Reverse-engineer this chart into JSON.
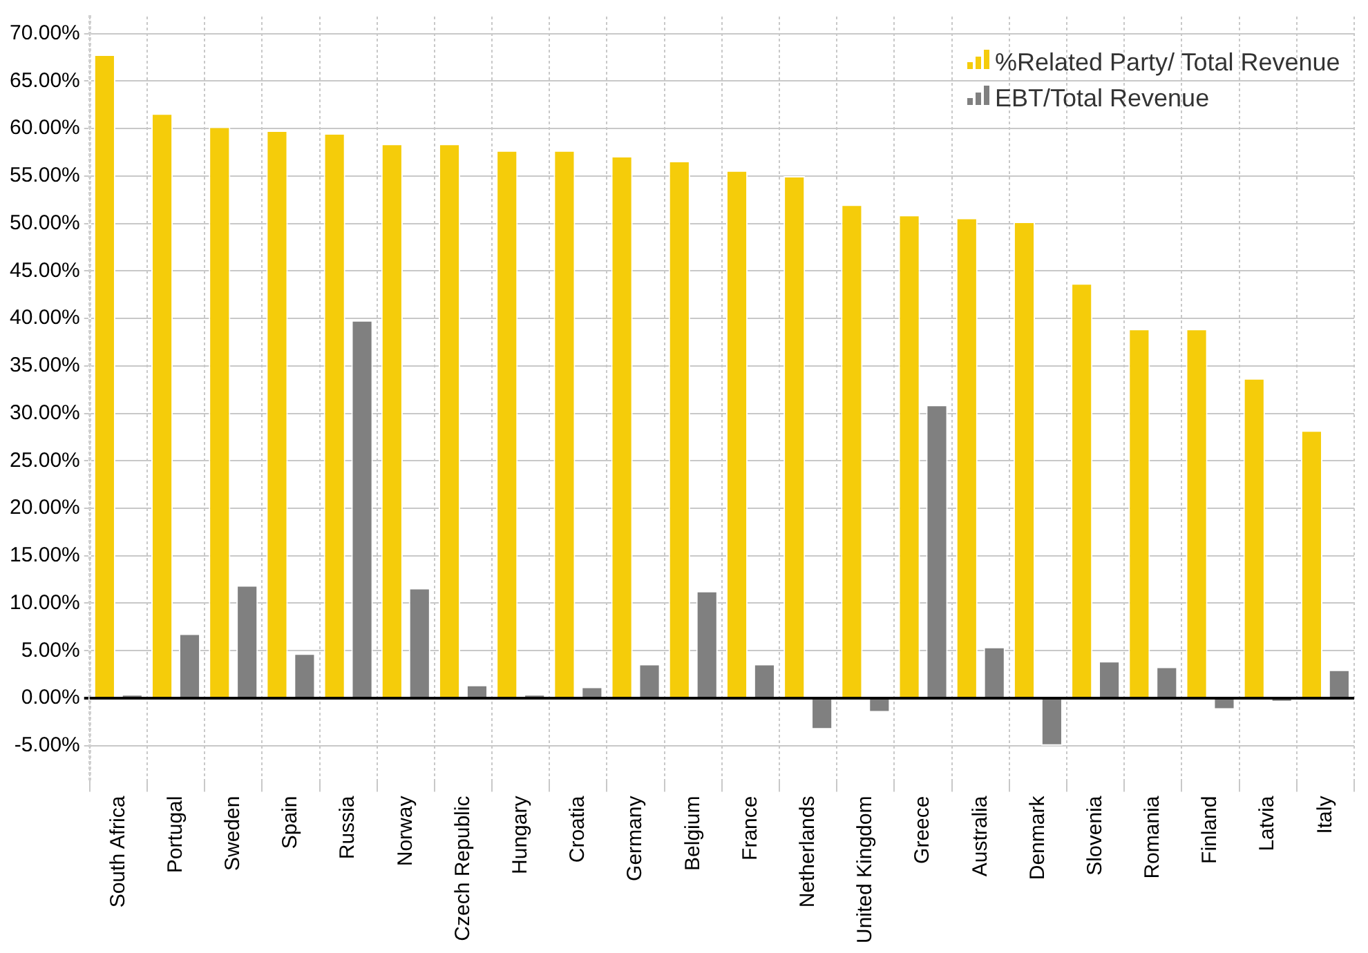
{
  "chart_data": {
    "type": "bar",
    "categories": [
      "South Africa",
      "Portugal",
      "Sweden",
      "Spain",
      "Russia",
      "Norway",
      "Czech Republic",
      "Hungary",
      "Croatia",
      "Germany",
      "Belgium",
      "France",
      "Netherlands",
      "United Kingdom",
      "Greece",
      "Australia",
      "Denmark",
      "Slovenia",
      "Romania",
      "Finland",
      "Latvia",
      "Italy"
    ],
    "series": [
      {
        "name": "%Related Party/ Total Revenue",
        "color": "#f5cc0a",
        "values": [
          67.8,
          61.6,
          60.2,
          59.8,
          59.5,
          58.4,
          58.4,
          57.7,
          57.7,
          57.1,
          56.6,
          55.6,
          55.0,
          52.0,
          50.9,
          50.6,
          50.2,
          43.7,
          38.9,
          38.9,
          33.7,
          28.2
        ]
      },
      {
        "name": "EBT/Total Revenue",
        "color": "#808080",
        "values": [
          0.4,
          6.8,
          11.9,
          4.7,
          39.8,
          11.6,
          1.4,
          0.4,
          1.2,
          3.6,
          11.3,
          3.6,
          -3.3,
          -1.5,
          30.9,
          5.4,
          -5.0,
          3.9,
          3.3,
          -1.2,
          -0.4,
          3.0
        ]
      }
    ],
    "ylim": [
      -8.7,
      71.8
    ],
    "yticks": [
      {
        "value": -5,
        "label": "-5.00%"
      },
      {
        "value": 0,
        "label": "0.00%"
      },
      {
        "value": 5,
        "label": "5.00%"
      },
      {
        "value": 10,
        "label": "10.00%"
      },
      {
        "value": 15,
        "label": "15.00%"
      },
      {
        "value": 20,
        "label": "20.00%"
      },
      {
        "value": 25,
        "label": "25.00%"
      },
      {
        "value": 30,
        "label": "30.00%"
      },
      {
        "value": 35,
        "label": "35.00%"
      },
      {
        "value": 40,
        "label": "40.00%"
      },
      {
        "value": 45,
        "label": "45.00%"
      },
      {
        "value": 50,
        "label": "50.00%"
      },
      {
        "value": 55,
        "label": "55.00%"
      },
      {
        "value": 60,
        "label": "60.00%"
      },
      {
        "value": 65,
        "label": "65.00%"
      },
      {
        "value": 70,
        "label": "70.00%"
      }
    ],
    "grid": true,
    "legend": "top right"
  }
}
